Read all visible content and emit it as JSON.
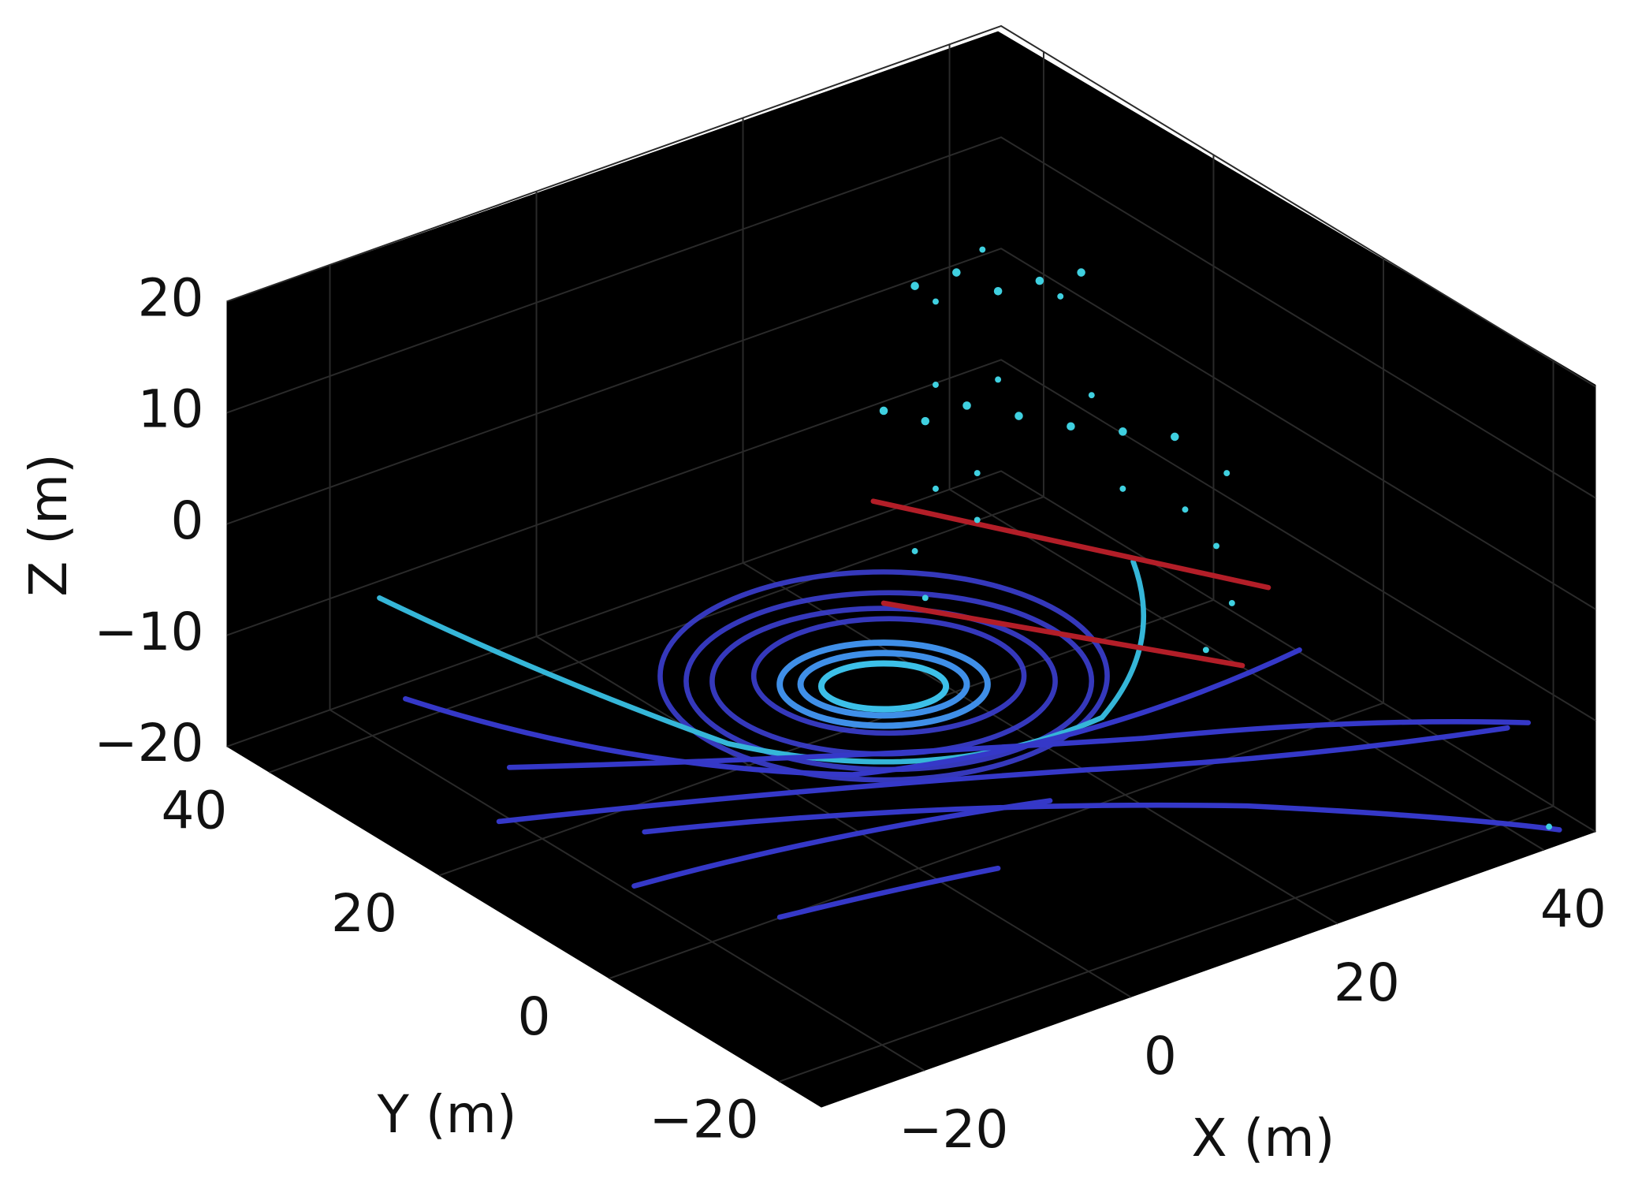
{
  "chart_data": {
    "type": "scatter3d",
    "xlabel": "X (m)",
    "ylabel": "Y (m)",
    "zlabel": "Z (m)",
    "xlim": [
      -30,
      45
    ],
    "ylim": [
      -25,
      45
    ],
    "zlim": [
      -20,
      20
    ],
    "xticks": [
      {
        "value": -20,
        "label": "−20"
      },
      0,
      20,
      40
    ],
    "yticks": [
      {
        "value": -20,
        "label": "−20"
      },
      0,
      20,
      40
    ],
    "zticks": [
      {
        "value": -20,
        "label": "−20"
      },
      {
        "value": -10,
        "label": "−10"
      },
      0,
      10,
      20
    ],
    "grid": true,
    "background": "#000000"
  }
}
